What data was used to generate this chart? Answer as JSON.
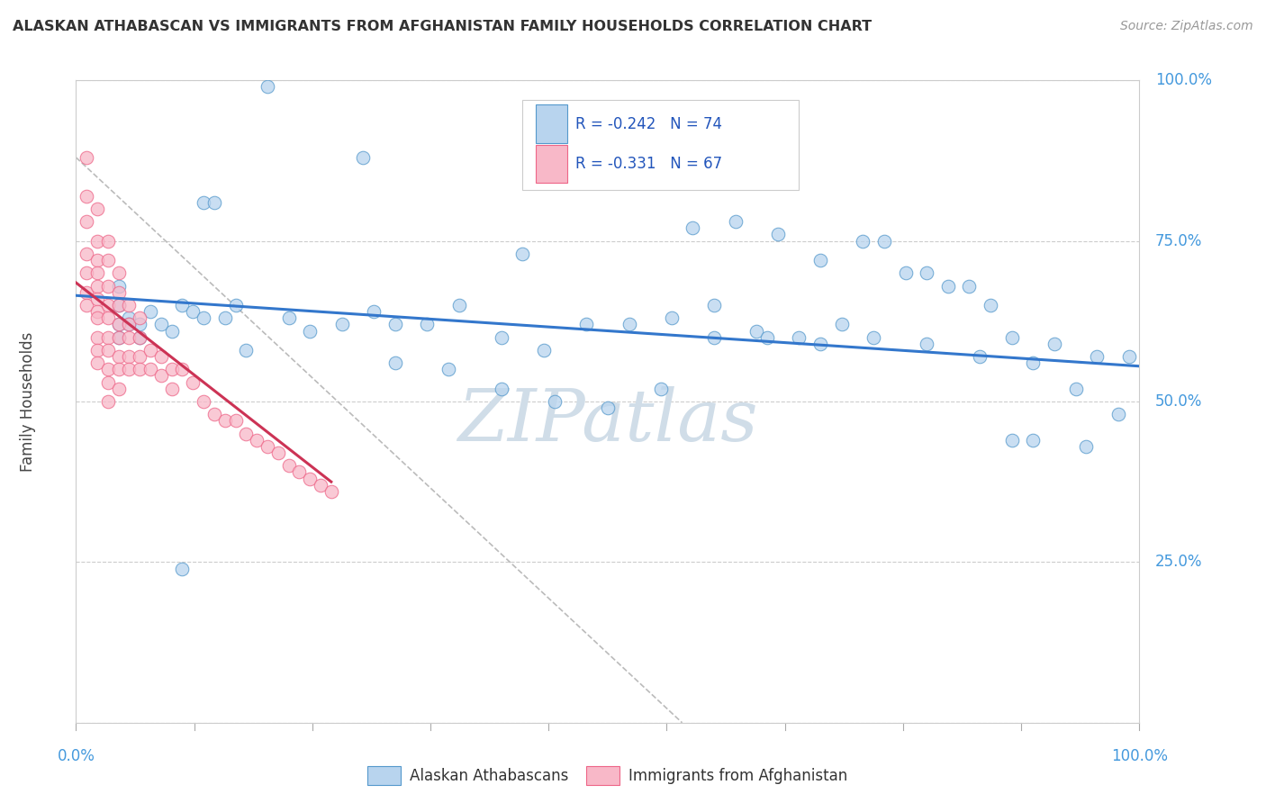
{
  "title": "ALASKAN ATHABASCAN VS IMMIGRANTS FROM AFGHANISTAN FAMILY HOUSEHOLDS CORRELATION CHART",
  "source": "Source: ZipAtlas.com",
  "ylabel": "Family Households",
  "yticks_labels": [
    "",
    "25.0%",
    "50.0%",
    "75.0%",
    "100.0%"
  ],
  "ytick_vals": [
    0.0,
    0.25,
    0.5,
    0.75,
    1.0
  ],
  "xtick_labels": [
    "0.0%",
    "100.0%"
  ],
  "xtick_vals": [
    0.0,
    1.0
  ],
  "xlim": [
    0.0,
    1.0
  ],
  "ylim": [
    0.0,
    1.0
  ],
  "legend_r_blue": "-0.242",
  "legend_n_blue": "74",
  "legend_r_pink": "-0.331",
  "legend_n_pink": "67",
  "legend_labels": [
    "Alaskan Athabascans",
    "Immigrants from Afghanistan"
  ],
  "blue_face": "#b8d4ee",
  "blue_edge": "#5599cc",
  "pink_face": "#f8b8c8",
  "pink_edge": "#ee6688",
  "blue_line": "#3377cc",
  "pink_line": "#cc3355",
  "gray_dash": "#bbbbbb",
  "bg": "#ffffff",
  "grid_color": "#cccccc",
  "blue_x": [
    0.18,
    0.12,
    0.13,
    0.04,
    0.05,
    0.06,
    0.07,
    0.08,
    0.09,
    0.1,
    0.11,
    0.12,
    0.14,
    0.16,
    0.2,
    0.22,
    0.25,
    0.28,
    0.3,
    0.33,
    0.36,
    0.4,
    0.44,
    0.48,
    0.52,
    0.56,
    0.6,
    0.64,
    0.68,
    0.72,
    0.76,
    0.8,
    0.84,
    0.88,
    0.92,
    0.96,
    0.99,
    0.58,
    0.62,
    0.66,
    0.7,
    0.74,
    0.78,
    0.82,
    0.86,
    0.9,
    0.94,
    0.98,
    0.6,
    0.65,
    0.7,
    0.75,
    0.8,
    0.85,
    0.9,
    0.95,
    0.3,
    0.35,
    0.4,
    0.45,
    0.5,
    0.55,
    0.04,
    0.04,
    0.04,
    0.05,
    0.06,
    0.1,
    0.15,
    0.88,
    0.42,
    0.27
  ],
  "blue_y": [
    0.99,
    0.81,
    0.81,
    0.68,
    0.63,
    0.62,
    0.64,
    0.62,
    0.61,
    0.65,
    0.64,
    0.63,
    0.63,
    0.58,
    0.63,
    0.61,
    0.62,
    0.64,
    0.62,
    0.62,
    0.65,
    0.6,
    0.58,
    0.62,
    0.62,
    0.63,
    0.65,
    0.61,
    0.6,
    0.62,
    0.75,
    0.7,
    0.68,
    0.6,
    0.59,
    0.57,
    0.57,
    0.77,
    0.78,
    0.76,
    0.72,
    0.75,
    0.7,
    0.68,
    0.65,
    0.56,
    0.52,
    0.48,
    0.6,
    0.6,
    0.59,
    0.6,
    0.59,
    0.57,
    0.44,
    0.43,
    0.56,
    0.55,
    0.52,
    0.5,
    0.49,
    0.52,
    0.65,
    0.6,
    0.62,
    0.62,
    0.6,
    0.24,
    0.65,
    0.44,
    0.73,
    0.88
  ],
  "pink_x": [
    0.01,
    0.01,
    0.01,
    0.01,
    0.01,
    0.01,
    0.01,
    0.02,
    0.02,
    0.02,
    0.02,
    0.02,
    0.02,
    0.02,
    0.02,
    0.02,
    0.02,
    0.02,
    0.03,
    0.03,
    0.03,
    0.03,
    0.03,
    0.03,
    0.03,
    0.03,
    0.03,
    0.03,
    0.04,
    0.04,
    0.04,
    0.04,
    0.04,
    0.04,
    0.04,
    0.04,
    0.05,
    0.05,
    0.05,
    0.05,
    0.05,
    0.06,
    0.06,
    0.06,
    0.06,
    0.07,
    0.07,
    0.08,
    0.08,
    0.09,
    0.09,
    0.1,
    0.11,
    0.12,
    0.13,
    0.14,
    0.15,
    0.16,
    0.17,
    0.18,
    0.19,
    0.2,
    0.21,
    0.22,
    0.23,
    0.24
  ],
  "pink_y": [
    0.88,
    0.82,
    0.78,
    0.73,
    0.7,
    0.67,
    0.65,
    0.8,
    0.75,
    0.72,
    0.7,
    0.68,
    0.66,
    0.64,
    0.63,
    0.6,
    0.58,
    0.56,
    0.75,
    0.72,
    0.68,
    0.65,
    0.63,
    0.6,
    0.58,
    0.55,
    0.53,
    0.5,
    0.7,
    0.67,
    0.65,
    0.62,
    0.6,
    0.57,
    0.55,
    0.52,
    0.65,
    0.62,
    0.6,
    0.57,
    0.55,
    0.63,
    0.6,
    0.57,
    0.55,
    0.58,
    0.55,
    0.57,
    0.54,
    0.55,
    0.52,
    0.55,
    0.53,
    0.5,
    0.48,
    0.47,
    0.47,
    0.45,
    0.44,
    0.43,
    0.42,
    0.4,
    0.39,
    0.38,
    0.37,
    0.36
  ],
  "blue_trend_x": [
    0.0,
    1.0
  ],
  "blue_trend_y": [
    0.665,
    0.555
  ],
  "pink_trend_x": [
    0.0,
    0.24
  ],
  "pink_trend_y": [
    0.685,
    0.375
  ],
  "gray_x": [
    0.0,
    0.57
  ],
  "gray_y": [
    0.88,
    0.0
  ],
  "watermark": "ZIPatlas",
  "watermark_color": "#d0dde8"
}
